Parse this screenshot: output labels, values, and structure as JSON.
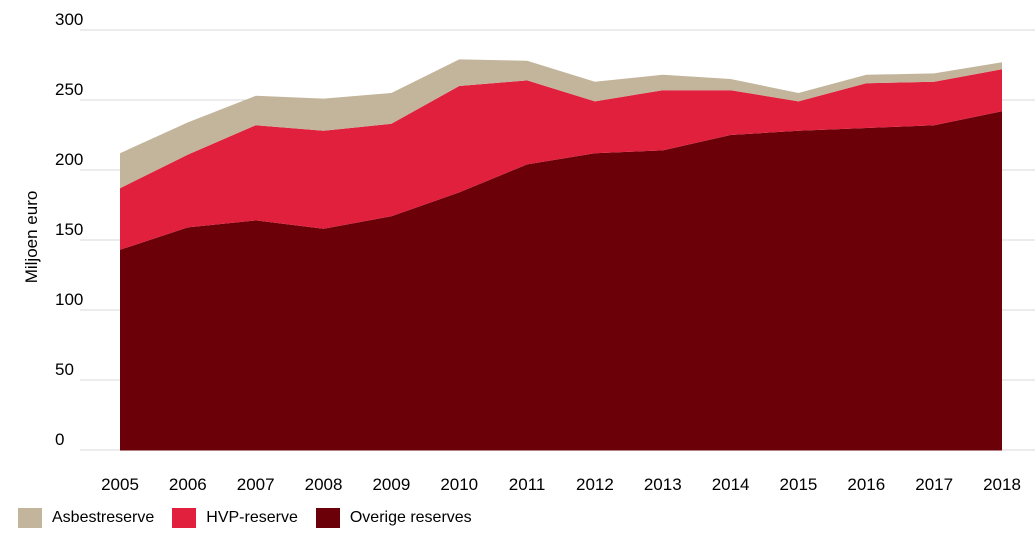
{
  "chart_data": {
    "type": "area",
    "stacked": true,
    "ylabel": "Miljoen euro",
    "xlabel": "",
    "ylim": [
      0,
      300
    ],
    "yticks": [
      0,
      50,
      100,
      150,
      200,
      250,
      300
    ],
    "grid": "horizontal",
    "legend_position": "bottom-left",
    "categories": [
      "2005",
      "2006",
      "2007",
      "2008",
      "2009",
      "2010",
      "2011",
      "2012",
      "2013",
      "2014",
      "2015",
      "2016",
      "2017",
      "2018"
    ],
    "series": [
      {
        "name": "Overige reserves",
        "color": "#6b0008",
        "values": [
          143,
          159,
          164,
          158,
          167,
          184,
          204,
          212,
          214,
          225,
          228,
          230,
          232,
          242
        ]
      },
      {
        "name": "HVP-reserve",
        "color": "#e0203c",
        "values": [
          44,
          52,
          68,
          70,
          66,
          76,
          60,
          37,
          43,
          32,
          21,
          32,
          31,
          30
        ]
      },
      {
        "name": "Asbestreserve",
        "color": "#c2b59b",
        "values": [
          25,
          23,
          21,
          23,
          22,
          19,
          14,
          14,
          11,
          8,
          6,
          6,
          6,
          5
        ]
      }
    ]
  }
}
